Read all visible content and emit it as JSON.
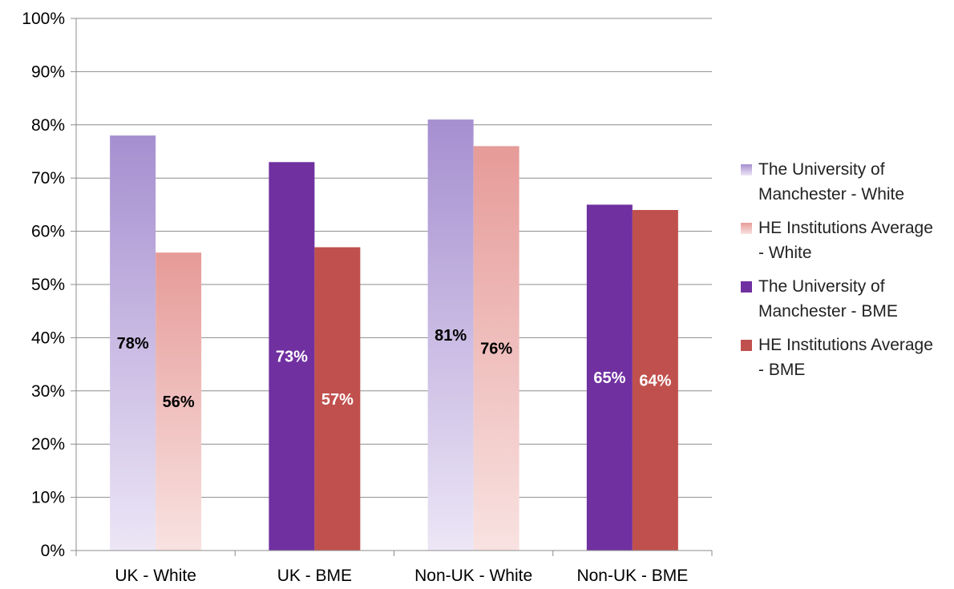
{
  "chart_data": {
    "type": "bar",
    "categories": [
      "UK - White",
      "UK - BME",
      "Non-UK - White",
      "Non-UK - BME"
    ],
    "ylim": [
      0,
      100
    ],
    "y_ticks": [
      "0%",
      "10%",
      "20%",
      "30%",
      "40%",
      "50%",
      "60%",
      "70%",
      "80%",
      "90%",
      "100%"
    ],
    "grid": true,
    "legend_position": "right",
    "series": [
      {
        "name": "The University of Manchester - White",
        "values": [
          78,
          null,
          81,
          null
        ],
        "labels": [
          "78%",
          null,
          "81%",
          null
        ],
        "color_top": "#a68fd0",
        "color_bottom": "#ece6f6",
        "label_color": "#000000"
      },
      {
        "name": "HE Institutions Average - White",
        "values": [
          56,
          null,
          76,
          null
        ],
        "labels": [
          "56%",
          null,
          "76%",
          null
        ],
        "color_top": "#e69b98",
        "color_bottom": "#f8e2e1",
        "label_color": "#000000"
      },
      {
        "name": "The University of Manchester - BME",
        "values": [
          null,
          73,
          null,
          65
        ],
        "labels": [
          null,
          "73%",
          null,
          "65%"
        ],
        "color_top": "#7030a0",
        "color_bottom": "#7030a0",
        "label_color": "#ffffff"
      },
      {
        "name": "HE Institutions Average - BME",
        "values": [
          null,
          57,
          null,
          64
        ],
        "labels": [
          null,
          "57%",
          null,
          "64%"
        ],
        "color_top": "#c0504d",
        "color_bottom": "#c0504d",
        "label_color": "#ffffff"
      }
    ]
  }
}
